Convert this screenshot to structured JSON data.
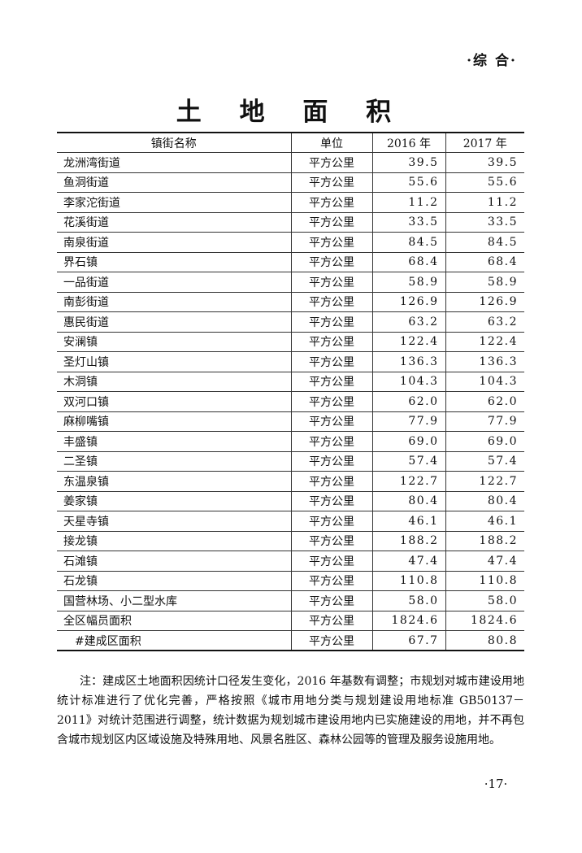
{
  "header": {
    "section": "·综 合·",
    "title": "土 地 面 积"
  },
  "table": {
    "columns": [
      "镇街名称",
      "单位",
      "2016 年",
      "2017 年"
    ],
    "rows": [
      [
        "龙洲湾街道",
        "平方公里",
        "39.5",
        "39.5"
      ],
      [
        "鱼洞街道",
        "平方公里",
        "55.6",
        "55.6"
      ],
      [
        "李家沱街道",
        "平方公里",
        "11.2",
        "11.2"
      ],
      [
        "花溪街道",
        "平方公里",
        "33.5",
        "33.5"
      ],
      [
        "南泉街道",
        "平方公里",
        "84.5",
        "84.5"
      ],
      [
        "界石镇",
        "平方公里",
        "68.4",
        "68.4"
      ],
      [
        "一品街道",
        "平方公里",
        "58.9",
        "58.9"
      ],
      [
        "南彭街道",
        "平方公里",
        "126.9",
        "126.9"
      ],
      [
        "惠民街道",
        "平方公里",
        "63.2",
        "63.2"
      ],
      [
        "安澜镇",
        "平方公里",
        "122.4",
        "122.4"
      ],
      [
        "圣灯山镇",
        "平方公里",
        "136.3",
        "136.3"
      ],
      [
        "木洞镇",
        "平方公里",
        "104.3",
        "104.3"
      ],
      [
        "双河口镇",
        "平方公里",
        "62.0",
        "62.0"
      ],
      [
        "麻柳嘴镇",
        "平方公里",
        "77.9",
        "77.9"
      ],
      [
        "丰盛镇",
        "平方公里",
        "69.0",
        "69.0"
      ],
      [
        "二圣镇",
        "平方公里",
        "57.4",
        "57.4"
      ],
      [
        "东温泉镇",
        "平方公里",
        "122.7",
        "122.7"
      ],
      [
        "姜家镇",
        "平方公里",
        "80.4",
        "80.4"
      ],
      [
        "天星寺镇",
        "平方公里",
        "46.1",
        "46.1"
      ],
      [
        "接龙镇",
        "平方公里",
        "188.2",
        "188.2"
      ],
      [
        "石滩镇",
        "平方公里",
        "47.4",
        "47.4"
      ],
      [
        "石龙镇",
        "平方公里",
        "110.8",
        "110.8"
      ],
      [
        "国营林场、小二型水库",
        "平方公里",
        "58.0",
        "58.0"
      ],
      [
        "全区幅员面积",
        "平方公里",
        "1824.6",
        "1824.6"
      ],
      [
        "#建成区面积",
        "平方公里",
        "67.7",
        "80.8"
      ]
    ]
  },
  "note": "注：建成区土地面积因统计口径发生变化，2016 年基数有调整；市规划对城市建设用地统计标准进行了优化完善，严格按照《城市用地分类与规划建设用地标准 GB50137－2011》对统计范围进行调整，统计数据为规划城市建设用地内已实施建设的用地，并不再包含城市规划区内区域设施及特殊用地、风景名胜区、森林公园等的管理及服务设施用地。",
  "footer": {
    "page_number": "·17·"
  }
}
